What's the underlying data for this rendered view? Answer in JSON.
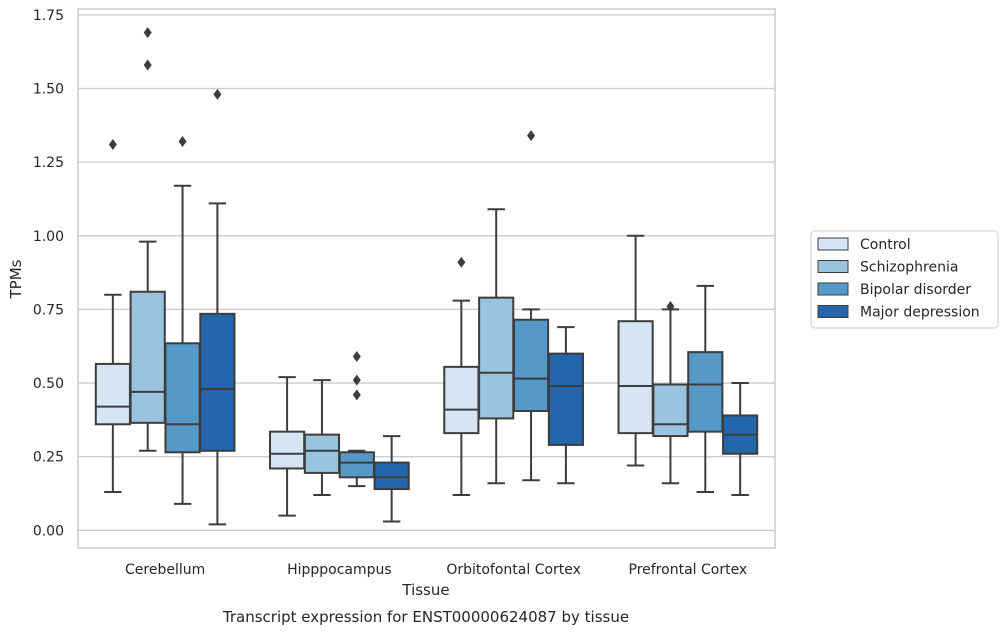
{
  "chart_data": {
    "type": "box",
    "title": "",
    "xlabel": "Tissue",
    "ylabel": "TPMs",
    "caption": "Transcript expression for ENST00000624087 by tissue",
    "ylim": [
      -0.06,
      1.77
    ],
    "yticks": [
      0.0,
      0.25,
      0.5,
      0.75,
      1.0,
      1.25,
      1.5,
      1.75
    ],
    "ytick_labels": [
      "0.00",
      "0.25",
      "0.50",
      "0.75",
      "1.00",
      "1.25",
      "1.50",
      "1.75"
    ],
    "grid": "horizontal",
    "legend_position": "outside-right",
    "categories": [
      "Cerebellum",
      "Hipppocampus",
      "Orbitofontal Cortex",
      "Prefrontal Cortex"
    ],
    "series": [
      {
        "name": "Control",
        "color": "#d6e5f4",
        "boxes": [
          {
            "min": 0.13,
            "q1": 0.36,
            "median": 0.42,
            "q3": 0.565,
            "max": 0.8,
            "outliers": [
              1.31
            ]
          },
          {
            "min": 0.05,
            "q1": 0.21,
            "median": 0.26,
            "q3": 0.335,
            "max": 0.52,
            "outliers": []
          },
          {
            "min": 0.12,
            "q1": 0.33,
            "median": 0.41,
            "q3": 0.555,
            "max": 0.78,
            "outliers": [
              0.91
            ]
          },
          {
            "min": 0.22,
            "q1": 0.33,
            "median": 0.49,
            "q3": 0.71,
            "max": 1.0,
            "outliers": []
          }
        ]
      },
      {
        "name": "Schizophrenia",
        "color": "#9ac3df",
        "boxes": [
          {
            "min": 0.27,
            "q1": 0.365,
            "median": 0.47,
            "q3": 0.81,
            "max": 0.98,
            "outliers": [
              1.58,
              1.69
            ]
          },
          {
            "min": 0.12,
            "q1": 0.195,
            "median": 0.27,
            "q3": 0.325,
            "max": 0.51,
            "outliers": []
          },
          {
            "min": 0.16,
            "q1": 0.38,
            "median": 0.535,
            "q3": 0.79,
            "max": 1.09,
            "outliers": []
          },
          {
            "min": 0.16,
            "q1": 0.32,
            "median": 0.36,
            "q3": 0.495,
            "max": 0.75,
            "outliers": [
              0.76
            ]
          }
        ]
      },
      {
        "name": "Bipolar disorder",
        "color": "#5699c8",
        "boxes": [
          {
            "min": 0.09,
            "q1": 0.265,
            "median": 0.36,
            "q3": 0.635,
            "max": 1.17,
            "outliers": [
              1.32
            ]
          },
          {
            "min": 0.15,
            "q1": 0.18,
            "median": 0.23,
            "q3": 0.265,
            "max": 0.27,
            "outliers": [
              0.46,
              0.51,
              0.59
            ]
          },
          {
            "min": 0.17,
            "q1": 0.405,
            "median": 0.515,
            "q3": 0.715,
            "max": 0.75,
            "outliers": [
              1.34
            ]
          },
          {
            "min": 0.13,
            "q1": 0.335,
            "median": 0.495,
            "q3": 0.605,
            "max": 0.83,
            "outliers": []
          }
        ]
      },
      {
        "name": "Major depression",
        "color": "#2366ab",
        "boxes": [
          {
            "min": 0.02,
            "q1": 0.27,
            "median": 0.48,
            "q3": 0.735,
            "max": 1.11,
            "outliers": [
              1.48
            ]
          },
          {
            "min": 0.03,
            "q1": 0.14,
            "median": 0.18,
            "q3": 0.23,
            "max": 0.32,
            "outliers": []
          },
          {
            "min": 0.16,
            "q1": 0.29,
            "median": 0.49,
            "q3": 0.6,
            "max": 0.69,
            "outliers": []
          },
          {
            "min": 0.12,
            "q1": 0.26,
            "median": 0.325,
            "q3": 0.39,
            "max": 0.5,
            "outliers": []
          }
        ]
      }
    ],
    "style": {
      "line_color": "#3d3d3d",
      "grid_color": "#cccccc",
      "frame_color": "#cccccc",
      "background": "#ffffff"
    }
  }
}
